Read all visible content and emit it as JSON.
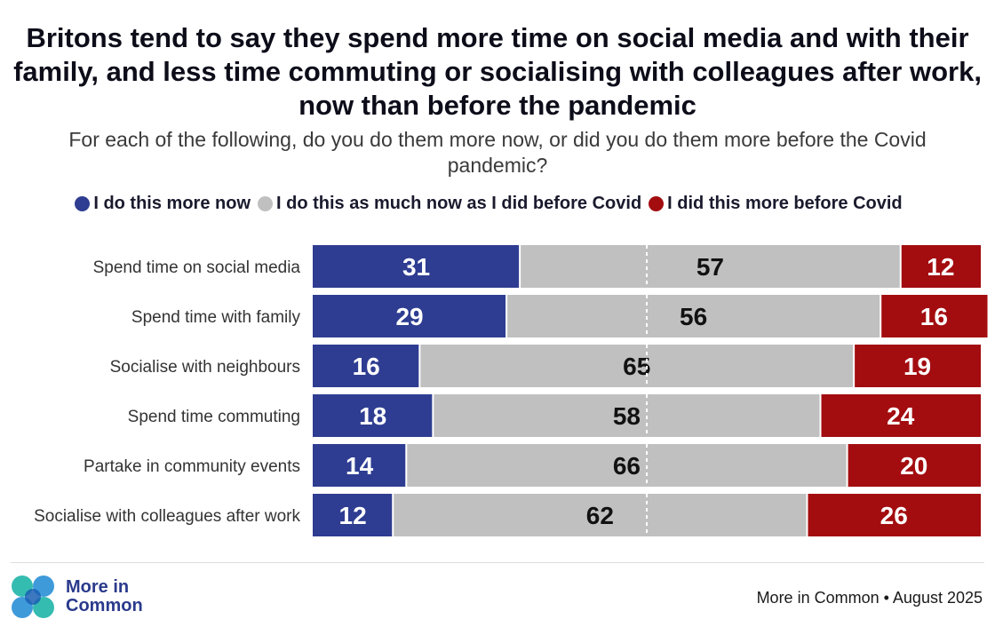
{
  "title": "Britons tend to say they spend more time on social media and with their family, and less time commuting or socialising with colleagues after work, now than before the pandemic",
  "subtitle": "For each of the following, do you do them more now, or did you do them more before the Covid pandemic?",
  "legend": [
    {
      "label": "I do this more now",
      "color": "#2e3d91"
    },
    {
      "label": "I do this as much now as I did before Covid",
      "color": "#c0c0c0"
    },
    {
      "label": "I did this more before Covid",
      "color": "#a30d10"
    }
  ],
  "chart_data": {
    "type": "bar",
    "orientation": "horizontal",
    "stacked": true,
    "categories": [
      "Spend time on social media",
      "Spend time with family",
      "Socialise with neighbours",
      "Spend time commuting",
      "Partake in community events",
      "Socialise with colleagues after work"
    ],
    "series": [
      {
        "name": "I do this more now",
        "color": "#2e3d91",
        "label_color": "#ffffff",
        "values": [
          31,
          29,
          16,
          18,
          14,
          12
        ]
      },
      {
        "name": "I do this as much now as I did before Covid",
        "color": "#c0c0c0",
        "label_color": "#111111",
        "values": [
          57,
          56,
          65,
          58,
          66,
          62
        ]
      },
      {
        "name": "I did this more before Covid",
        "color": "#a30d10",
        "label_color": "#ffffff",
        "values": [
          12,
          16,
          19,
          24,
          20,
          26
        ]
      }
    ],
    "xlim": [
      0,
      100
    ],
    "midline": 50
  },
  "footer": {
    "logo_line1": "More in",
    "logo_line2": "Common",
    "source": "More in Common • August 2025"
  }
}
